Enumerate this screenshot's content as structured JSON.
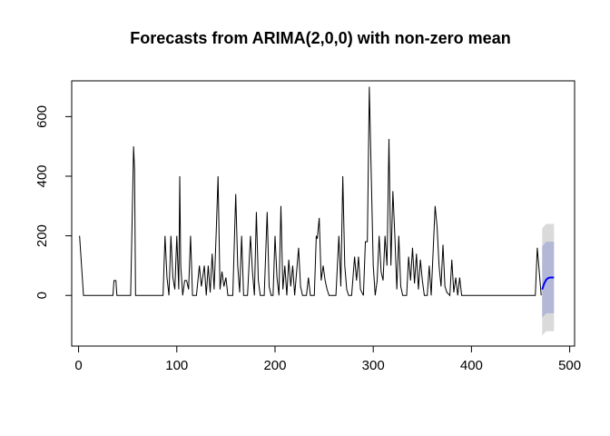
{
  "chart_data": {
    "type": "line",
    "title": "Forecasts from ARIMA(2,0,0) with non-zero mean",
    "xlabel": "",
    "ylabel": "",
    "xlim": [
      -7,
      505
    ],
    "ylim": [
      -170,
      720
    ],
    "xticks": [
      0,
      100,
      200,
      300,
      400,
      500
    ],
    "yticks": [
      0,
      200,
      400,
      600
    ],
    "grid": false,
    "legend": "none",
    "colors": {
      "history": "#000000",
      "forecast_mean": "#0000ff",
      "pi95": "#dadada",
      "pi80": "#b3b8d6"
    },
    "series": [
      {
        "role": "history",
        "points": [
          [
            1,
            200
          ],
          [
            5,
            0
          ],
          [
            35,
            0
          ],
          [
            36,
            50
          ],
          [
            38,
            50
          ],
          [
            39,
            0
          ],
          [
            53,
            0
          ],
          [
            56,
            500
          ],
          [
            57,
            420
          ],
          [
            58,
            0
          ],
          [
            86,
            0
          ],
          [
            88,
            200
          ],
          [
            90,
            60
          ],
          [
            92,
            0
          ],
          [
            94,
            200
          ],
          [
            96,
            60
          ],
          [
            98,
            20
          ],
          [
            100,
            200
          ],
          [
            102,
            20
          ],
          [
            103,
            400
          ],
          [
            104,
            100
          ],
          [
            106,
            0
          ],
          [
            108,
            50
          ],
          [
            110,
            50
          ],
          [
            112,
            20
          ],
          [
            114,
            200
          ],
          [
            116,
            0
          ],
          [
            120,
            0
          ],
          [
            123,
            100
          ],
          [
            125,
            30
          ],
          [
            128,
            100
          ],
          [
            130,
            0
          ],
          [
            132,
            100
          ],
          [
            134,
            10
          ],
          [
            136,
            140
          ],
          [
            138,
            20
          ],
          [
            140,
            200
          ],
          [
            142,
            400
          ],
          [
            144,
            20
          ],
          [
            146,
            80
          ],
          [
            148,
            30
          ],
          [
            150,
            60
          ],
          [
            152,
            0
          ],
          [
            157,
            0
          ],
          [
            160,
            340
          ],
          [
            162,
            100
          ],
          [
            164,
            10
          ],
          [
            166,
            200
          ],
          [
            168,
            0
          ],
          [
            172,
            0
          ],
          [
            175,
            200
          ],
          [
            177,
            80
          ],
          [
            179,
            0
          ],
          [
            181,
            280
          ],
          [
            183,
            50
          ],
          [
            185,
            0
          ],
          [
            189,
            0
          ],
          [
            192,
            280
          ],
          [
            194,
            30
          ],
          [
            196,
            0
          ],
          [
            198,
            0
          ],
          [
            200,
            200
          ],
          [
            202,
            60
          ],
          [
            204,
            0
          ],
          [
            206,
            300
          ],
          [
            208,
            20
          ],
          [
            210,
            100
          ],
          [
            212,
            0
          ],
          [
            214,
            120
          ],
          [
            216,
            30
          ],
          [
            218,
            100
          ],
          [
            220,
            0
          ],
          [
            222,
            80
          ],
          [
            224,
            160
          ],
          [
            226,
            30
          ],
          [
            228,
            0
          ],
          [
            232,
            0
          ],
          [
            234,
            60
          ],
          [
            236,
            0
          ],
          [
            240,
            0
          ],
          [
            242,
            200
          ],
          [
            243,
            190
          ],
          [
            245,
            260
          ],
          [
            247,
            50
          ],
          [
            249,
            100
          ],
          [
            251,
            50
          ],
          [
            253,
            20
          ],
          [
            255,
            0
          ],
          [
            262,
            0
          ],
          [
            265,
            200
          ],
          [
            267,
            30
          ],
          [
            269,
            400
          ],
          [
            271,
            100
          ],
          [
            273,
            20
          ],
          [
            275,
            0
          ],
          [
            278,
            0
          ],
          [
            281,
            130
          ],
          [
            283,
            50
          ],
          [
            285,
            130
          ],
          [
            287,
            20
          ],
          [
            290,
            0
          ],
          [
            292,
            180
          ],
          [
            294,
            180
          ],
          [
            296,
            700
          ],
          [
            298,
            400
          ],
          [
            300,
            100
          ],
          [
            302,
            0
          ],
          [
            304,
            50
          ],
          [
            306,
            200
          ],
          [
            308,
            80
          ],
          [
            310,
            50
          ],
          [
            312,
            200
          ],
          [
            314,
            100
          ],
          [
            316,
            525
          ],
          [
            318,
            100
          ],
          [
            320,
            350
          ],
          [
            322,
            200
          ],
          [
            324,
            20
          ],
          [
            326,
            200
          ],
          [
            328,
            30
          ],
          [
            330,
            0
          ],
          [
            334,
            0
          ],
          [
            336,
            130
          ],
          [
            338,
            50
          ],
          [
            340,
            160
          ],
          [
            342,
            40
          ],
          [
            344,
            140
          ],
          [
            346,
            20
          ],
          [
            348,
            120
          ],
          [
            350,
            50
          ],
          [
            352,
            0
          ],
          [
            355,
            0
          ],
          [
            357,
            100
          ],
          [
            359,
            0
          ],
          [
            361,
            150
          ],
          [
            363,
            300
          ],
          [
            365,
            230
          ],
          [
            367,
            100
          ],
          [
            369,
            30
          ],
          [
            371,
            170
          ],
          [
            373,
            30
          ],
          [
            375,
            10
          ],
          [
            378,
            0
          ],
          [
            380,
            120
          ],
          [
            382,
            10
          ],
          [
            384,
            60
          ],
          [
            386,
            0
          ],
          [
            388,
            60
          ],
          [
            390,
            0
          ],
          [
            394,
            0
          ],
          [
            465,
            0
          ],
          [
            467,
            160
          ],
          [
            469,
            80
          ],
          [
            471,
            0
          ]
        ]
      },
      {
        "role": "forecast_mean",
        "points": [
          [
            472,
            20
          ],
          [
            474,
            40
          ],
          [
            476,
            52
          ],
          [
            478,
            58
          ],
          [
            480,
            60
          ],
          [
            484,
            60
          ]
        ]
      },
      {
        "role": "interval_95",
        "x_range": [
          472,
          484
        ],
        "upper": [
          [
            472,
            225
          ],
          [
            476,
            240
          ],
          [
            484,
            240
          ]
        ],
        "lower": [
          [
            472,
            -135
          ],
          [
            476,
            -120
          ],
          [
            484,
            -120
          ]
        ]
      },
      {
        "role": "interval_80",
        "x_range": [
          472,
          484
        ],
        "upper": [
          [
            472,
            165
          ],
          [
            476,
            180
          ],
          [
            484,
            180
          ]
        ],
        "lower": [
          [
            472,
            -75
          ],
          [
            476,
            -60
          ],
          [
            484,
            -60
          ]
        ]
      }
    ]
  }
}
